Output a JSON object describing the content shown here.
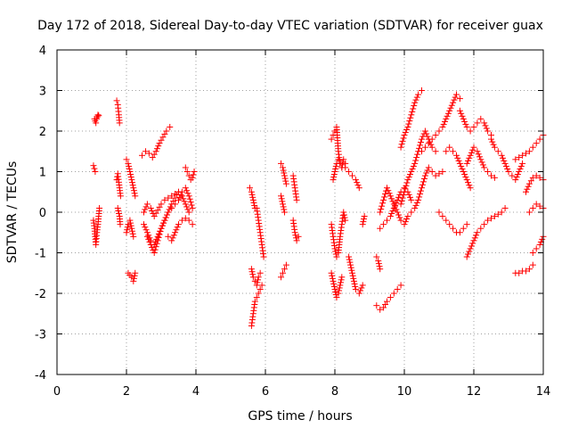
{
  "chart_data": {
    "type": "scatter",
    "title": "Day 172 of 2018, Sidereal Day-to-day VTEC variation (SDTVAR) for receiver guax",
    "xlabel": "GPS time / hours",
    "ylabel": "SDTVAR / TECUs",
    "xlim": [
      0,
      14
    ],
    "ylim": [
      -4,
      4
    ],
    "xticks": [
      0,
      2,
      4,
      6,
      8,
      10,
      12,
      14
    ],
    "xtick_labels": [
      "0",
      "2",
      "4",
      "6",
      "8",
      "10",
      "12",
      "14"
    ],
    "yticks": [
      -4,
      -3,
      -2,
      -1,
      0,
      1,
      2,
      3,
      4
    ],
    "ytick_labels": [
      "-4",
      "-3",
      "-2",
      "-1",
      "0",
      "1",
      "2",
      "3",
      "4"
    ],
    "grid": true,
    "marker": "+",
    "color": "#ff0000",
    "series": [
      {
        "name": "s01",
        "x": [
          1.08,
          1.1,
          1.12,
          1.14,
          1.16,
          1.18,
          1.2
        ],
        "y": [
          2.3,
          2.25,
          2.2,
          2.3,
          2.35,
          2.4,
          2.38
        ]
      },
      {
        "name": "s02",
        "x": [
          1.05,
          1.1
        ],
        "y": [
          1.15,
          1.0
        ]
      },
      {
        "name": "s03",
        "x": [
          1.05,
          1.08,
          1.1,
          1.12,
          1.15,
          1.18,
          1.2,
          1.22
        ],
        "y": [
          -0.2,
          -0.4,
          -0.6,
          -0.8,
          -0.5,
          -0.3,
          -0.1,
          0.1
        ]
      },
      {
        "name": "s04",
        "x": [
          1.72,
          1.75,
          1.78,
          1.8
        ],
        "y": [
          2.75,
          2.65,
          2.4,
          2.2
        ]
      },
      {
        "name": "s05",
        "x": [
          1.72,
          1.75,
          1.8,
          1.83
        ],
        "y": [
          0.8,
          0.95,
          0.6,
          0.4
        ]
      },
      {
        "name": "s06",
        "x": [
          1.75,
          1.8,
          1.82
        ],
        "y": [
          0.1,
          -0.1,
          -0.3
        ]
      },
      {
        "name": "s07",
        "x": [
          2.0,
          2.05,
          2.1,
          2.15,
          2.2,
          2.25
        ],
        "y": [
          1.3,
          1.2,
          1.0,
          0.8,
          0.6,
          0.4
        ]
      },
      {
        "name": "s08",
        "x": [
          2.0,
          2.05,
          2.1,
          2.15,
          2.2
        ],
        "y": [
          -0.5,
          -0.3,
          -0.2,
          -0.4,
          -0.6
        ]
      },
      {
        "name": "s09",
        "x": [
          2.05,
          2.1,
          2.15,
          2.2,
          2.25
        ],
        "y": [
          -1.5,
          -1.55,
          -1.6,
          -1.7,
          -1.5
        ]
      },
      {
        "name": "s10",
        "x": [
          2.45,
          2.55,
          2.65,
          2.75,
          2.85,
          2.95,
          3.05,
          3.15,
          3.25
        ],
        "y": [
          1.4,
          1.5,
          1.45,
          1.35,
          1.5,
          1.7,
          1.85,
          2.0,
          2.1
        ]
      },
      {
        "name": "s11",
        "x": [
          2.5,
          2.6,
          2.7,
          2.8,
          2.9,
          3.0,
          3.1,
          3.2,
          3.3,
          3.4,
          3.5
        ],
        "y": [
          0.0,
          0.2,
          0.1,
          -0.1,
          0.05,
          0.2,
          0.3,
          0.35,
          0.4,
          0.45,
          0.5
        ]
      },
      {
        "name": "s12",
        "x": [
          2.5,
          2.6,
          2.7,
          2.8,
          2.9,
          3.0,
          3.1,
          3.2,
          3.3,
          3.4,
          3.5,
          3.6,
          3.7,
          3.8
        ],
        "y": [
          -0.3,
          -0.5,
          -0.7,
          -0.8,
          -0.6,
          -0.4,
          -0.2,
          0.0,
          0.2,
          0.35,
          0.5,
          0.4,
          0.2,
          0.0
        ]
      },
      {
        "name": "s13",
        "x": [
          2.6,
          2.7,
          2.8,
          2.9,
          3.0,
          3.1,
          3.2,
          3.3,
          3.4,
          3.5,
          3.6,
          3.7,
          3.8,
          3.9
        ],
        "y": [
          -0.6,
          -0.8,
          -1.0,
          -0.7,
          -0.4,
          -0.2,
          0.0,
          0.1,
          0.2,
          0.3,
          0.5,
          0.6,
          0.4,
          0.1
        ]
      },
      {
        "name": "s14",
        "x": [
          3.2,
          3.3,
          3.4,
          3.5,
          3.6,
          3.7,
          3.8,
          3.9
        ],
        "y": [
          -0.6,
          -0.7,
          -0.5,
          -0.3,
          -0.2,
          -0.15,
          -0.2,
          -0.3
        ]
      },
      {
        "name": "s15",
        "x": [
          3.7,
          3.75,
          3.8,
          3.85,
          3.9,
          3.95
        ],
        "y": [
          1.1,
          1.0,
          0.9,
          0.8,
          0.85,
          1.0
        ]
      },
      {
        "name": "s16",
        "x": [
          5.55,
          5.6,
          5.65,
          5.7
        ],
        "y": [
          0.6,
          0.5,
          0.3,
          0.1
        ]
      },
      {
        "name": "s17",
        "x": [
          5.6,
          5.65,
          5.7,
          5.75,
          5.8,
          5.85,
          5.9
        ],
        "y": [
          -2.8,
          -2.5,
          -2.2,
          -2.1,
          -2.0,
          -1.9,
          -1.8
        ]
      },
      {
        "name": "s18",
        "x": [
          5.6,
          5.65,
          5.7,
          5.75,
          5.8,
          5.85
        ],
        "y": [
          -1.4,
          -1.6,
          -1.7,
          -1.8,
          -1.6,
          -1.5
        ]
      },
      {
        "name": "s19",
        "x": [
          5.75,
          5.8,
          5.85,
          5.9,
          5.95
        ],
        "y": [
          0.1,
          -0.2,
          -0.5,
          -0.8,
          -1.1
        ]
      },
      {
        "name": "s20",
        "x": [
          6.45,
          6.5,
          6.55,
          6.6
        ],
        "y": [
          1.2,
          1.1,
          0.9,
          0.7
        ]
      },
      {
        "name": "s21",
        "x": [
          6.45,
          6.5,
          6.55
        ],
        "y": [
          0.4,
          0.2,
          0.0
        ]
      },
      {
        "name": "s22",
        "x": [
          6.45,
          6.5,
          6.55,
          6.6
        ],
        "y": [
          -1.6,
          -1.5,
          -1.4,
          -1.3
        ]
      },
      {
        "name": "s23",
        "x": [
          6.8,
          6.85,
          6.9
        ],
        "y": [
          0.9,
          0.6,
          0.3
        ]
      },
      {
        "name": "s24",
        "x": [
          6.8,
          6.85,
          6.9,
          6.95
        ],
        "y": [
          -0.2,
          -0.5,
          -0.7,
          -0.6
        ]
      },
      {
        "name": "s25",
        "x": [
          7.9,
          7.95,
          8.0,
          8.05,
          8.1,
          8.15,
          8.2
        ],
        "y": [
          1.8,
          1.9,
          2.0,
          2.1,
          1.5,
          1.2,
          1.1
        ]
      },
      {
        "name": "s26",
        "x": [
          7.95,
          8.0,
          8.05,
          8.1,
          8.15,
          8.2,
          8.25,
          8.3
        ],
        "y": [
          0.8,
          1.0,
          1.2,
          1.3,
          1.2,
          1.1,
          1.3,
          1.2
        ]
      },
      {
        "name": "s27",
        "x": [
          7.9,
          7.95,
          8.0,
          8.05,
          8.1,
          8.15,
          8.2,
          8.25,
          8.3
        ],
        "y": [
          -0.3,
          -0.6,
          -0.9,
          -1.1,
          -1.0,
          -0.6,
          -0.3,
          0.0,
          -0.2
        ]
      },
      {
        "name": "s28",
        "x": [
          7.9,
          7.95,
          8.0,
          8.05,
          8.1,
          8.15,
          8.2
        ],
        "y": [
          -1.5,
          -1.7,
          -1.9,
          -2.1,
          -2.0,
          -1.8,
          -1.6
        ]
      },
      {
        "name": "s29",
        "x": [
          8.3,
          8.4,
          8.5,
          8.6,
          8.7
        ],
        "y": [
          1.1,
          1.0,
          0.9,
          0.8,
          0.6
        ]
      },
      {
        "name": "s30",
        "x": [
          8.4,
          8.5,
          8.6,
          8.7,
          8.8
        ],
        "y": [
          -1.1,
          -1.5,
          -1.9,
          -2.0,
          -1.8
        ]
      },
      {
        "name": "s31",
        "x": [
          8.8,
          8.85
        ],
        "y": [
          -0.3,
          -0.1
        ]
      },
      {
        "name": "s32",
        "x": [
          9.2,
          9.3,
          9.4,
          9.5,
          9.6,
          9.7,
          9.8,
          9.9
        ],
        "y": [
          -2.3,
          -2.4,
          -2.35,
          -2.2,
          -2.1,
          -2.0,
          -1.9,
          -1.8
        ]
      },
      {
        "name": "s33",
        "x": [
          9.2,
          9.25,
          9.3
        ],
        "y": [
          -1.1,
          -1.2,
          -1.4
        ]
      },
      {
        "name": "s34",
        "x": [
          9.3,
          9.4,
          9.5,
          9.6,
          9.7,
          9.8,
          9.9
        ],
        "y": [
          0.0,
          0.3,
          0.6,
          0.4,
          0.2,
          0.0,
          -0.2
        ]
      },
      {
        "name": "s35",
        "x": [
          9.3,
          9.4,
          9.5,
          9.6,
          9.7,
          9.8,
          9.9,
          10.0,
          10.1,
          10.2
        ],
        "y": [
          -0.4,
          -0.3,
          -0.2,
          -0.1,
          0.1,
          0.3,
          0.5,
          0.6,
          0.5,
          0.3
        ]
      },
      {
        "name": "s36",
        "x": [
          9.9,
          10.0,
          10.1,
          10.2,
          10.3,
          10.4,
          10.5
        ],
        "y": [
          1.6,
          1.9,
          2.1,
          2.4,
          2.7,
          2.9,
          3.0
        ]
      },
      {
        "name": "s37",
        "x": [
          9.9,
          10.0,
          10.1,
          10.2,
          10.3,
          10.4,
          10.5,
          10.6,
          10.7,
          10.8,
          10.9
        ],
        "y": [
          0.2,
          0.5,
          0.8,
          1.0,
          1.2,
          1.5,
          1.8,
          2.0,
          1.8,
          1.6,
          1.5
        ]
      },
      {
        "name": "s38",
        "x": [
          10.0,
          10.1,
          10.2,
          10.3,
          10.4,
          10.5,
          10.6,
          10.7,
          10.8,
          10.9,
          11.0,
          11.1
        ],
        "y": [
          -0.3,
          -0.1,
          0.0,
          0.1,
          0.3,
          0.6,
          0.9,
          1.1,
          1.0,
          0.9,
          0.95,
          1.0
        ]
      },
      {
        "name": "s39",
        "x": [
          10.5,
          10.6,
          10.7,
          10.8,
          10.9,
          11.0,
          11.1,
          11.2,
          11.3,
          11.4,
          11.5,
          11.6
        ],
        "y": [
          1.5,
          1.6,
          1.7,
          1.8,
          1.9,
          2.0,
          2.1,
          2.3,
          2.5,
          2.7,
          2.9,
          2.8
        ]
      },
      {
        "name": "s40",
        "x": [
          11.2,
          11.3,
          11.4,
          11.5,
          11.6,
          11.7,
          11.8,
          11.9
        ],
        "y": [
          1.5,
          1.6,
          1.5,
          1.4,
          1.2,
          1.0,
          0.8,
          0.6
        ]
      },
      {
        "name": "s41",
        "x": [
          11.0,
          11.1,
          11.2,
          11.3,
          11.4,
          11.5,
          11.6,
          11.7,
          11.8
        ],
        "y": [
          0.0,
          -0.1,
          -0.2,
          -0.3,
          -0.4,
          -0.5,
          -0.5,
          -0.4,
          -0.3
        ]
      },
      {
        "name": "s42",
        "x": [
          11.6,
          11.7,
          11.8,
          11.9,
          12.0,
          12.1,
          12.2,
          12.3,
          12.4,
          12.5
        ],
        "y": [
          2.5,
          2.3,
          2.1,
          2.0,
          2.1,
          2.2,
          2.3,
          2.2,
          2.0,
          1.9
        ]
      },
      {
        "name": "s43",
        "x": [
          11.8,
          11.9,
          12.0,
          12.1,
          12.2,
          12.3,
          12.4,
          12.5,
          12.6,
          12.7,
          12.8,
          12.9
        ],
        "y": [
          -1.1,
          -0.9,
          -0.7,
          -0.5,
          -0.4,
          -0.3,
          -0.2,
          -0.15,
          -0.1,
          -0.05,
          0.0,
          0.1
        ]
      },
      {
        "name": "s44",
        "x": [
          11.8,
          11.9,
          12.0,
          12.1,
          12.2,
          12.3,
          12.4,
          12.5,
          12.6
        ],
        "y": [
          1.2,
          1.4,
          1.6,
          1.5,
          1.3,
          1.1,
          1.0,
          0.9,
          0.85
        ]
      },
      {
        "name": "s45",
        "x": [
          12.5,
          12.6,
          12.7,
          12.8,
          12.9,
          13.0,
          13.1,
          13.2,
          13.3,
          13.4
        ],
        "y": [
          1.8,
          1.6,
          1.5,
          1.4,
          1.2,
          1.0,
          0.9,
          0.8,
          1.0,
          1.2
        ]
      },
      {
        "name": "s46",
        "x": [
          13.2,
          13.3,
          13.4,
          13.5,
          13.6,
          13.7,
          13.8,
          13.9,
          14.0
        ],
        "y": [
          1.3,
          1.35,
          1.4,
          1.45,
          1.5,
          1.6,
          1.7,
          1.8,
          1.9
        ]
      },
      {
        "name": "s47",
        "x": [
          13.2,
          13.3,
          13.4,
          13.5,
          13.6,
          13.7
        ],
        "y": [
          -1.5,
          -1.5,
          -1.45,
          -1.45,
          -1.4,
          -1.3
        ]
      },
      {
        "name": "s48",
        "x": [
          13.5,
          13.6,
          13.7,
          13.8,
          13.9,
          14.0
        ],
        "y": [
          0.5,
          0.7,
          0.85,
          0.9,
          0.85,
          0.8
        ]
      },
      {
        "name": "s49",
        "x": [
          13.6,
          13.7,
          13.8,
          13.9,
          14.0
        ],
        "y": [
          0.0,
          0.1,
          0.2,
          0.15,
          0.1
        ]
      },
      {
        "name": "s50",
        "x": [
          13.7,
          13.8,
          13.9,
          14.0
        ],
        "y": [
          -1.0,
          -0.9,
          -0.8,
          -0.6
        ]
      }
    ]
  }
}
